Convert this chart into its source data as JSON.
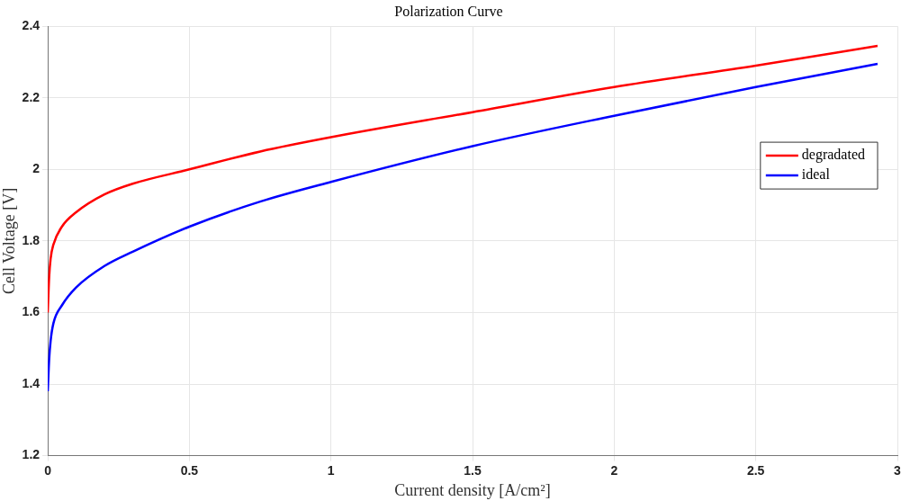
{
  "chart_data": {
    "type": "line",
    "title": "Polarization Curve",
    "xlabel": "Current density [A/cm²]",
    "ylabel": "Cell Voltage [V]",
    "xlim": [
      0,
      3
    ],
    "xticks": [
      0,
      0.5,
      1,
      1.5,
      2,
      2.5,
      3
    ],
    "ylim": [
      1.2,
      2.4
    ],
    "yticks": [
      1.2,
      1.4,
      1.6,
      1.8,
      2,
      2.2,
      2.4
    ],
    "grid": true,
    "legend": "right",
    "marker": "none",
    "line_style": "solid",
    "x": [
      0,
      0.005,
      0.01,
      0.02,
      0.05,
      0.1,
      0.2,
      0.3,
      0.5,
      0.75,
      1,
      1.5,
      2,
      2.5,
      2.93
    ],
    "series": [
      {
        "name": "degradated",
        "color": "#ff0000",
        "values": [
          1.6,
          1.7,
          1.75,
          1.79,
          1.84,
          1.88,
          1.93,
          1.96,
          2.0,
          2.05,
          2.09,
          2.16,
          2.23,
          2.29,
          2.345
        ]
      },
      {
        "name": "ideal",
        "color": "#0000ff",
        "values": [
          1.38,
          1.47,
          1.52,
          1.57,
          1.62,
          1.67,
          1.73,
          1.77,
          1.84,
          1.91,
          1.965,
          2.065,
          2.15,
          2.23,
          2.295
        ]
      }
    ]
  }
}
